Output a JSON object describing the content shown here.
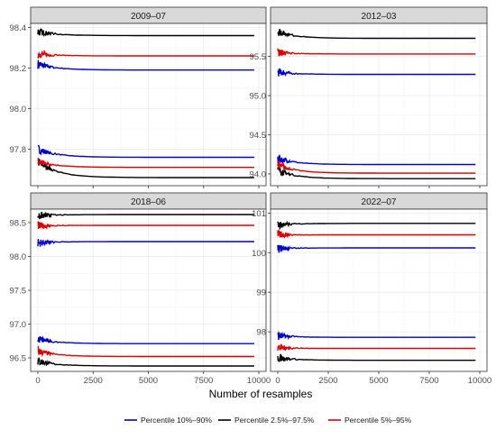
{
  "colors": {
    "percentile_10_90": "#0000cc",
    "percentile_2_5_97_5": "#000000",
    "percentile_5_95": "#dd0000",
    "strip_fill": "#d9d9d9",
    "grid": "#ebebeb"
  },
  "x_axis_label": "Number of resamples",
  "legend": {
    "position": "bottom",
    "items": [
      {
        "label": "Percentile 10%–90%",
        "color_key": "percentile_10_90"
      },
      {
        "label": "Percentile 2.5%–97.5%",
        "color_key": "percentile_2_5_97_5"
      },
      {
        "label": "Percentile 5%–95%",
        "color_key": "percentile_5_95"
      }
    ]
  },
  "chart_data": [
    {
      "type": "line",
      "title": "2009–07",
      "xlim": [
        0,
        10000
      ],
      "ylim": [
        97.62,
        98.42
      ],
      "x_ticks": [
        0,
        2500,
        5000,
        7500,
        10000
      ],
      "x_tick_labels": [
        "",
        "",
        "",
        "",
        ""
      ],
      "y_ticks": [
        97.8,
        98.0,
        98.2,
        98.4
      ],
      "y_tick_labels": [
        "97.8",
        "98.0",
        "98.2",
        "98.4"
      ],
      "grid": true,
      "series": [
        {
          "name": "Percentile 10%–90%",
          "band": "upper",
          "start": 98.22,
          "end": 98.19
        },
        {
          "name": "Percentile 10%–90%",
          "band": "lower",
          "start": 97.8,
          "end": 97.76
        },
        {
          "name": "Percentile 2.5%–97.5%",
          "band": "upper",
          "start": 98.38,
          "end": 98.36
        },
        {
          "name": "Percentile 2.5%–97.5%",
          "band": "lower",
          "start": 97.74,
          "end": 97.66
        },
        {
          "name": "Percentile 5%–95%",
          "band": "upper",
          "start": 98.27,
          "end": 98.26
        },
        {
          "name": "Percentile 5%–95%",
          "band": "lower",
          "start": 97.74,
          "end": 97.71
        }
      ]
    },
    {
      "type": "line",
      "title": "2012–03",
      "xlim": [
        0,
        10000
      ],
      "ylim": [
        93.85,
        95.92
      ],
      "x_ticks": [
        0,
        2500,
        5000,
        7500,
        10000
      ],
      "x_tick_labels": [
        "",
        "",
        "",
        "",
        ""
      ],
      "y_ticks": [
        94.0,
        94.5,
        95.0,
        95.5
      ],
      "y_tick_labels": [
        "94.0",
        "94.5",
        "95.0",
        "95.5"
      ],
      "grid": true,
      "series": [
        {
          "name": "Percentile 10%–90%",
          "band": "upper",
          "start": 95.3,
          "end": 95.27
        },
        {
          "name": "Percentile 10%–90%",
          "band": "lower",
          "start": 94.2,
          "end": 94.12
        },
        {
          "name": "Percentile 2.5%–97.5%",
          "band": "upper",
          "start": 95.82,
          "end": 95.73
        },
        {
          "name": "Percentile 2.5%–97.5%",
          "band": "lower",
          "start": 94.05,
          "end": 93.94
        },
        {
          "name": "Percentile 5%–95%",
          "band": "upper",
          "start": 95.55,
          "end": 95.53
        },
        {
          "name": "Percentile 5%–95%",
          "band": "lower",
          "start": 94.12,
          "end": 94.01
        }
      ]
    },
    {
      "type": "line",
      "title": "2018–06",
      "xlim": [
        0,
        10000
      ],
      "ylim": [
        96.3,
        98.7
      ],
      "x_ticks": [
        0,
        2500,
        5000,
        7500,
        10000
      ],
      "x_tick_labels": [
        "0",
        "2500",
        "5000",
        "7500",
        "10000"
      ],
      "y_ticks": [
        96.5,
        97.0,
        97.5,
        98.0,
        98.5
      ],
      "y_tick_labels": [
        "96.5",
        "97.0",
        "97.5",
        "98.0",
        "98.5"
      ],
      "grid": true,
      "series": [
        {
          "name": "Percentile 10%–90%",
          "band": "upper",
          "start": 98.2,
          "end": 98.22
        },
        {
          "name": "Percentile 10%–90%",
          "band": "lower",
          "start": 96.78,
          "end": 96.71
        },
        {
          "name": "Percentile 2.5%–97.5%",
          "band": "upper",
          "start": 98.6,
          "end": 98.62
        },
        {
          "name": "Percentile 2.5%–97.5%",
          "band": "lower",
          "start": 96.45,
          "end": 96.38
        },
        {
          "name": "Percentile 5%–95%",
          "band": "upper",
          "start": 98.45,
          "end": 98.46
        },
        {
          "name": "Percentile 5%–95%",
          "band": "lower",
          "start": 96.6,
          "end": 96.52
        }
      ]
    },
    {
      "type": "line",
      "title": "2022–07",
      "xlim": [
        0,
        10000
      ],
      "ylim": [
        97.0,
        101.1
      ],
      "x_ticks": [
        0,
        2500,
        5000,
        7500,
        10000
      ],
      "x_tick_labels": [
        "0",
        "2500",
        "5000",
        "7500",
        "10000"
      ],
      "y_ticks": [
        98,
        99,
        100,
        101
      ],
      "y_tick_labels": [
        "98",
        "99",
        "100",
        "101"
      ],
      "grid": true,
      "series": [
        {
          "name": "Percentile 10%–90%",
          "band": "upper",
          "start": 100.1,
          "end": 100.12
        },
        {
          "name": "Percentile 10%–90%",
          "band": "lower",
          "start": 97.9,
          "end": 97.86
        },
        {
          "name": "Percentile 2.5%–97.5%",
          "band": "upper",
          "start": 100.7,
          "end": 100.74
        },
        {
          "name": "Percentile 2.5%–97.5%",
          "band": "lower",
          "start": 97.35,
          "end": 97.28
        },
        {
          "name": "Percentile 5%–95%",
          "band": "upper",
          "start": 100.45,
          "end": 100.45
        },
        {
          "name": "Percentile 5%–95%",
          "band": "lower",
          "start": 97.6,
          "end": 97.58
        }
      ]
    }
  ]
}
